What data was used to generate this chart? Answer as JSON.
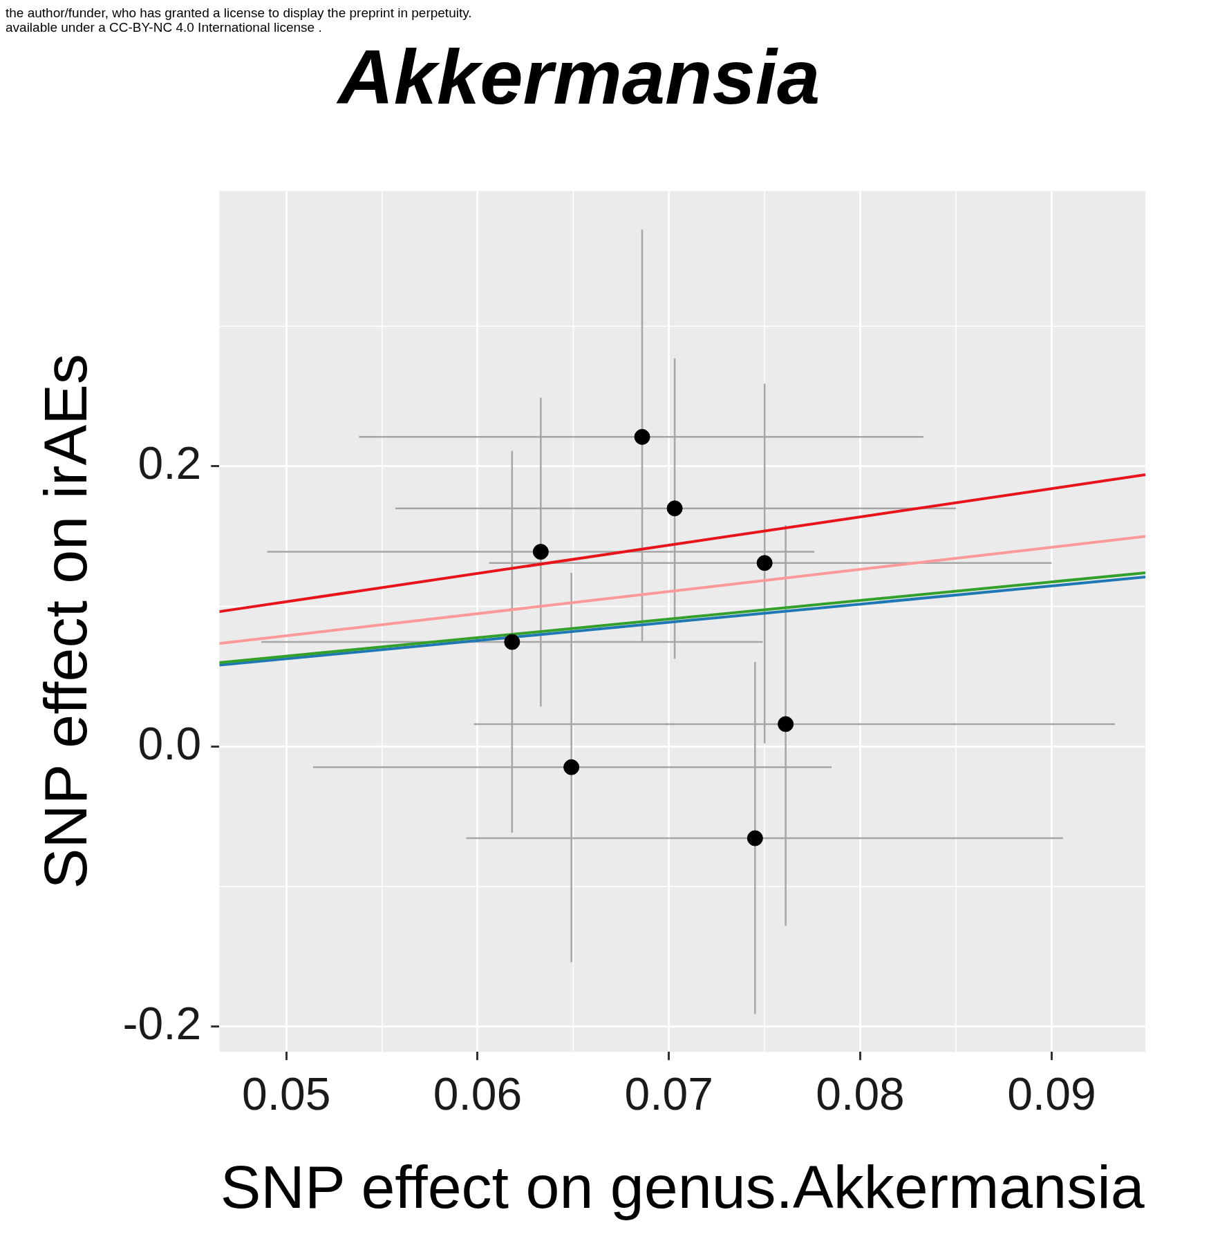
{
  "chart_data": {
    "type": "scatter",
    "title": "Akkermansia",
    "xlabel": "SNP effect on genus.Akkermansia",
    "ylabel": "SNP effect on irAEs",
    "annotations": [
      "the author/funder, who has granted a license to display the preprint in perpetuity.",
      "available under a CC-BY-NC 4.0 International license ."
    ],
    "xlim": [
      0.0465,
      0.0949
    ],
    "ylim": [
      -0.218,
      0.3966
    ],
    "xticks": [
      0.05,
      0.06,
      0.07,
      0.08,
      0.09
    ],
    "yticks": [
      {
        "value": -0.2,
        "label": "-0.2"
      },
      {
        "value": 0,
        "label": "0.0"
      },
      {
        "value": 0.2,
        "label": "0.2"
      }
    ],
    "grid": true,
    "series": [
      {
        "type": "line",
        "color": "#e8141c",
        "x": [
          0.0465,
          0.0949
        ],
        "values": [
          0.0963,
          0.194
        ]
      },
      {
        "type": "line",
        "color": "#fb9a99",
        "x": [
          0.0465,
          0.0949
        ],
        "values": [
          0.0735,
          0.15
        ]
      },
      {
        "type": "line",
        "color": "#33a02c",
        "x": [
          0.0465,
          0.0949
        ],
        "values": [
          0.0598,
          0.124
        ]
      },
      {
        "type": "line",
        "color": "#1f78b4",
        "x": [
          0.0465,
          0.0949
        ],
        "values": [
          0.0581,
          0.121
        ]
      },
      {
        "marker": "circle",
        "color": "#000000",
        "x": [
          0.0618,
          0.0633,
          0.0649,
          0.0686,
          0.0703,
          0.075,
          0.0745,
          0.0761
        ],
        "values": [
          0.0746,
          0.139,
          -0.0148,
          0.221,
          0.17,
          0.131,
          -0.0655,
          0.016
        ],
        "errors": [
          [
            -0.0615,
            0.211
          ],
          [
            0.0285,
            0.249
          ],
          [
            -0.154,
            0.124
          ],
          [
            0.0746,
            0.369
          ],
          [
            0.0627,
            0.277
          ],
          [
            0.0023,
            0.259
          ],
          [
            -0.191,
            0.0604
          ],
          [
            -0.128,
            0.158
          ]
        ],
        "xerrors": [
          [
            0.0487,
            0.0749
          ],
          [
            0.049,
            0.0776
          ],
          [
            0.0514,
            0.0785
          ],
          [
            0.0538,
            0.0833
          ],
          [
            0.0557,
            0.085
          ],
          [
            0.0606,
            0.09
          ],
          [
            0.0594,
            0.0906
          ],
          [
            0.0598,
            0.0933
          ]
        ]
      }
    ]
  }
}
